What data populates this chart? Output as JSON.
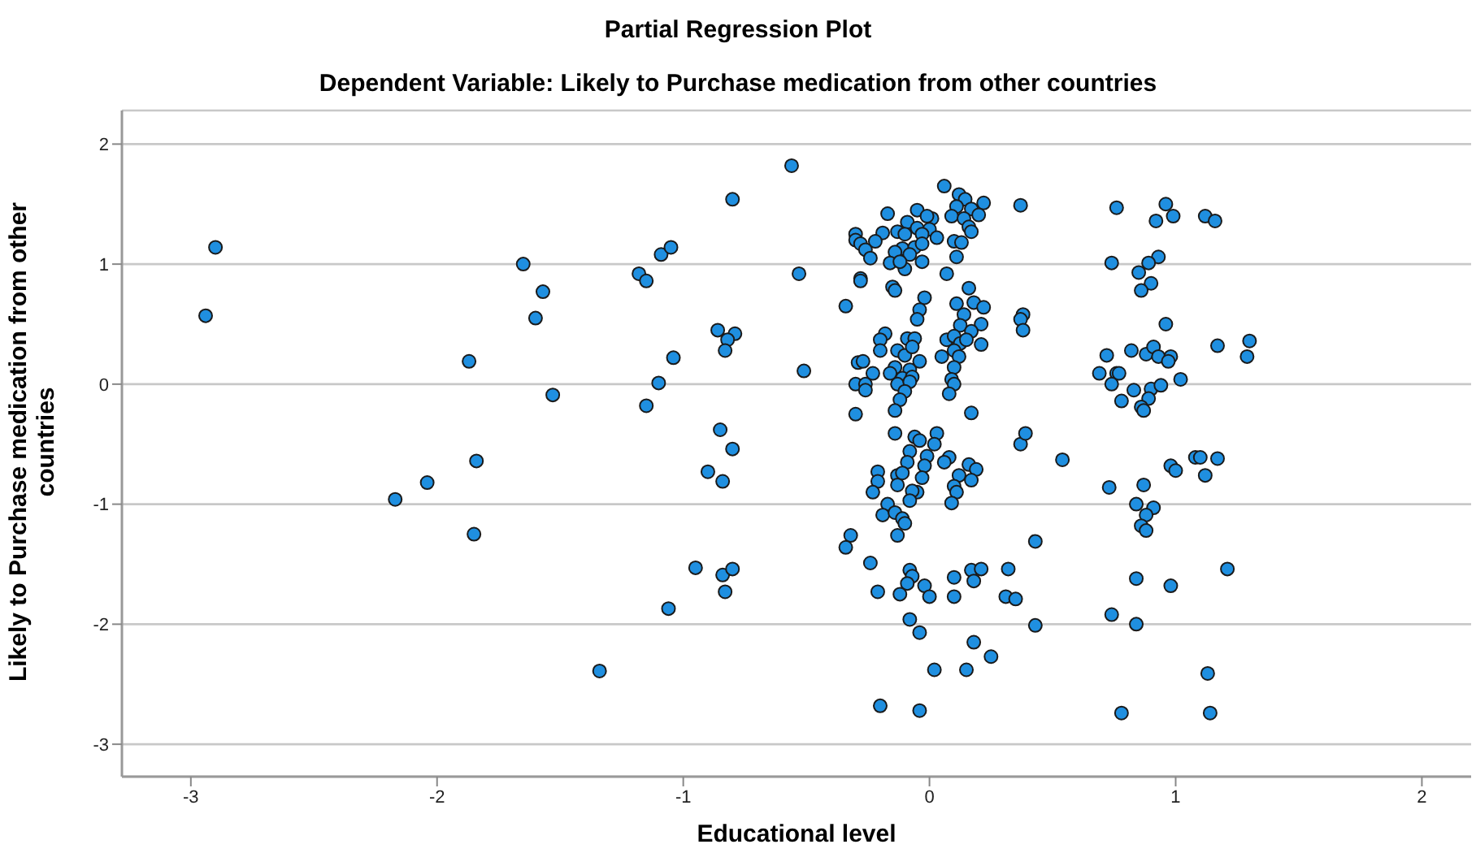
{
  "chart_data": {
    "type": "scatter",
    "title": "Partial Regression Plot",
    "subtitle": "Dependent Variable: Likely to Purchase medication from other countries",
    "xlabel": "Educational level",
    "ylabel": "Likely to Purchase medication from other countries",
    "xlim": [
      -3.28,
      2.2
    ],
    "xticks": [
      -3,
      -2,
      -1,
      0,
      1,
      2
    ],
    "ylim": [
      -3.27,
      2.28
    ],
    "yticks": [
      -3,
      -2,
      -1,
      0,
      1,
      2
    ],
    "grid": "y",
    "marker": "circle",
    "legend": false,
    "series": [
      {
        "color": "#1f8fe0",
        "x": [
          -2.9,
          -2.94,
          -1.65,
          -1.57,
          -1.6,
          -1.87,
          -1.53,
          -1.18,
          -1.15,
          -1.09,
          -1.05,
          -1.04,
          -1.1,
          -1.15,
          -1.84,
          -2.04,
          -2.17,
          -1.85,
          -1.34,
          -0.56,
          -0.8,
          -0.53,
          -0.86,
          -0.79,
          -0.82,
          -0.83,
          -0.51,
          -0.85,
          -0.8,
          -0.9,
          -0.84,
          -0.95,
          -0.84,
          -0.8,
          -0.83,
          -1.06,
          0.76,
          0.96,
          0.92,
          0.99,
          1.12,
          1.16,
          0.74,
          0.93,
          0.89,
          0.85,
          0.9,
          0.86,
          0.96,
          0.72,
          0.82,
          0.88,
          0.91,
          0.93,
          0.98,
          0.97,
          0.69,
          0.76,
          0.77,
          0.74,
          1.02,
          0.83,
          0.9,
          0.94,
          0.78,
          0.89,
          0.86,
          0.87,
          1.17,
          1.3,
          1.29,
          0.98,
          1.0,
          1.08,
          1.1,
          1.17,
          1.12,
          0.73,
          0.87,
          0.84,
          0.91,
          0.88,
          0.86,
          0.88,
          0.84,
          0.98,
          1.21,
          0.74,
          0.84,
          1.13,
          0.78,
          1.14,
          0.06,
          0.12,
          0.145,
          0.22,
          0.37,
          0.11,
          0.17,
          0.2,
          0.09,
          0.14,
          -0.17,
          -0.05,
          0.01,
          -0.01,
          -0.09,
          0.0,
          -0.05,
          -0.03,
          -0.13,
          -0.1,
          -0.3,
          -0.3,
          -0.19,
          -0.22,
          -0.28,
          -0.26,
          -0.24,
          -0.11,
          -0.06,
          -0.14,
          -0.08,
          -0.03,
          0.03,
          0.1,
          0.13,
          0.16,
          0.17,
          0.11,
          -0.16,
          -0.1,
          -0.03,
          -0.12,
          -0.28,
          -0.28,
          0.07,
          -0.15,
          -0.14,
          -0.34,
          -0.02,
          -0.04,
          -0.05,
          0.16,
          0.11,
          0.18,
          0.22,
          0.14,
          0.125,
          0.21,
          0.38,
          0.37,
          0.38,
          0.17,
          -0.18,
          -0.2,
          -0.2,
          -0.29,
          -0.27,
          -0.23,
          -0.3,
          -0.26,
          -0.26,
          -0.3,
          -0.09,
          -0.06,
          -0.13,
          -0.1,
          -0.07,
          -0.04,
          -0.14,
          -0.08,
          -0.16,
          -0.11,
          -0.07,
          -0.13,
          -0.08,
          -0.1,
          -0.12,
          -0.14,
          0.05,
          0.07,
          0.1,
          0.125,
          0.15,
          0.21,
          0.1,
          0.12,
          0.1,
          0.09,
          0.1,
          0.08,
          0.17,
          -0.14,
          -0.06,
          -0.04,
          0.03,
          0.02,
          -0.08,
          -0.01,
          -0.09,
          -0.02,
          0.08,
          0.06,
          -0.21,
          -0.21,
          -0.23,
          -0.13,
          -0.13,
          -0.11,
          -0.03,
          -0.05,
          -0.07,
          -0.08,
          -0.17,
          -0.19,
          -0.14,
          -0.11,
          -0.1,
          -0.13,
          0.12,
          0.16,
          0.19,
          0.17,
          0.1,
          0.11,
          0.09,
          0.37,
          0.39,
          0.54,
          -0.32,
          -0.34,
          0.43,
          -0.24,
          -0.08,
          -0.07,
          -0.09,
          -0.02,
          0.0,
          -0.21,
          -0.12,
          0.1,
          0.1,
          0.17,
          0.21,
          0.18,
          0.32,
          0.31,
          0.35,
          -0.08,
          -0.04,
          0.43,
          0.18,
          0.25,
          0.02,
          0.15,
          -0.2,
          -0.04
        ],
        "values": [
          1.14,
          0.57,
          1.0,
          0.77,
          0.55,
          0.19,
          -0.09,
          0.92,
          0.86,
          1.08,
          1.14,
          0.22,
          0.01,
          -0.18,
          -0.64,
          -0.82,
          -0.96,
          -1.25,
          -2.39,
          1.82,
          1.54,
          0.92,
          0.45,
          0.42,
          0.37,
          0.28,
          0.11,
          -0.38,
          -0.54,
          -0.73,
          -0.81,
          -1.53,
          -1.59,
          -1.54,
          -1.73,
          -1.87,
          1.47,
          1.5,
          1.36,
          1.4,
          1.4,
          1.36,
          1.01,
          1.06,
          1.01,
          0.93,
          0.84,
          0.78,
          0.5,
          0.24,
          0.28,
          0.25,
          0.31,
          0.23,
          0.23,
          0.19,
          0.09,
          0.09,
          0.09,
          0.0,
          0.04,
          -0.05,
          -0.04,
          -0.01,
          -0.14,
          -0.12,
          -0.19,
          -0.22,
          0.32,
          0.36,
          0.23,
          -0.68,
          -0.72,
          -0.61,
          -0.61,
          -0.62,
          -0.76,
          -0.86,
          -0.84,
          -1.0,
          -1.03,
          -1.09,
          -1.18,
          -1.22,
          -1.62,
          -1.68,
          -1.54,
          -1.92,
          -2.0,
          -2.41,
          -2.74,
          -2.74,
          1.65,
          1.58,
          1.54,
          1.51,
          1.49,
          1.48,
          1.46,
          1.41,
          1.4,
          1.38,
          1.42,
          1.45,
          1.38,
          1.4,
          1.35,
          1.29,
          1.3,
          1.25,
          1.27,
          1.25,
          1.25,
          1.2,
          1.26,
          1.19,
          1.17,
          1.12,
          1.05,
          1.13,
          1.14,
          1.1,
          1.08,
          1.17,
          1.22,
          1.19,
          1.18,
          1.31,
          1.27,
          1.06,
          1.01,
          0.96,
          1.02,
          1.02,
          0.88,
          0.86,
          0.92,
          0.81,
          0.78,
          0.65,
          0.72,
          0.62,
          0.54,
          0.8,
          0.67,
          0.68,
          0.64,
          0.58,
          0.49,
          0.5,
          0.58,
          0.54,
          0.45,
          0.44,
          0.42,
          0.37,
          0.28,
          0.18,
          0.19,
          0.09,
          0.0,
          0.0,
          -0.05,
          -0.25,
          0.38,
          0.38,
          0.28,
          0.24,
          0.31,
          0.19,
          0.14,
          0.12,
          0.09,
          0.05,
          0.06,
          0.0,
          0.02,
          -0.06,
          -0.13,
          -0.22,
          0.23,
          0.37,
          0.4,
          0.34,
          0.37,
          0.33,
          0.28,
          0.23,
          0.14,
          0.04,
          0.0,
          -0.08,
          -0.24,
          -0.41,
          -0.44,
          -0.47,
          -0.41,
          -0.5,
          -0.56,
          -0.6,
          -0.65,
          -0.68,
          -0.61,
          -0.65,
          -0.73,
          -0.81,
          -0.9,
          -0.76,
          -0.84,
          -0.74,
          -0.78,
          -0.9,
          -0.89,
          -0.97,
          -1.0,
          -1.09,
          -1.07,
          -1.12,
          -1.16,
          -1.26,
          -0.76,
          -0.67,
          -0.71,
          -0.8,
          -0.85,
          -0.9,
          -0.99,
          -0.5,
          -0.41,
          -0.63,
          -1.26,
          -1.36,
          -1.31,
          -1.49,
          -1.55,
          -1.6,
          -1.66,
          -1.68,
          -1.77,
          -1.73,
          -1.75,
          -1.61,
          -1.77,
          -1.55,
          -1.54,
          -1.64,
          -1.54,
          -1.77,
          -1.79,
          -1.96,
          -2.07,
          -2.01,
          -2.15,
          -2.27,
          -2.38,
          -2.38,
          -2.68,
          -2.72
        ]
      }
    ]
  }
}
